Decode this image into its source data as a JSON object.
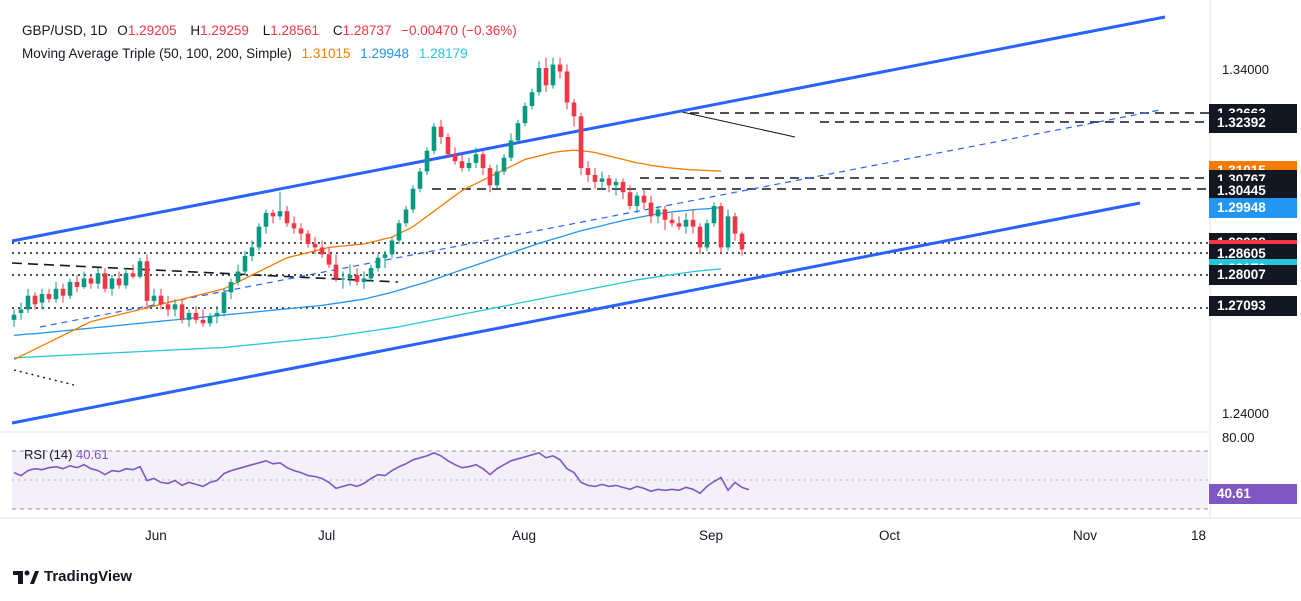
{
  "header": {
    "symbol": "GBP/USD, 1D",
    "open_label": "O",
    "open": "1.29205",
    "high_label": "H",
    "high": "1.29259",
    "low_label": "L",
    "low": "1.28561",
    "close_label": "C",
    "close": "1.28737",
    "change": "−0.00470 (−0.36%)",
    "indicator": "Moving Average Triple (50, 100, 200, Simple)",
    "ma50": "1.31015",
    "ma100": "1.29948",
    "ma200": "1.28179"
  },
  "colors": {
    "up": "#089981",
    "down": "#f23645",
    "ma50": "#f57c00",
    "ma100": "#2196f3",
    "ma200": "#26c6da",
    "channel": "#2962ff",
    "rsi": "#7e57c2",
    "dark_tag": "#131722"
  },
  "price_axis": {
    "labels": [
      {
        "text": "1.34000",
        "value": 1.34
      },
      {
        "text": "1.24000",
        "value": 1.24
      }
    ],
    "tags": [
      {
        "text": "1.32663",
        "value": 1.32663,
        "bg": "#131722"
      },
      {
        "text": "1.32392",
        "value": 1.32392,
        "bg": "#131722"
      },
      {
        "text": "1.31015",
        "value": 1.31015,
        "bg": "#f57c00"
      },
      {
        "text": "1.30767",
        "value": 1.30767,
        "bg": "#131722"
      },
      {
        "text": "1.30445",
        "value": 1.30445,
        "bg": "#131722"
      },
      {
        "text": "1.29948",
        "value": 1.29948,
        "bg": "#2196f3"
      },
      {
        "text": "1.28938",
        "value": 1.28938,
        "bg": "#131722"
      },
      {
        "text": "1.28737",
        "value": 1.28737,
        "bg": "#f23645"
      },
      {
        "text": "1.28605",
        "value": 1.28605,
        "bg": "#131722"
      },
      {
        "text": "1.28179",
        "value": 1.28179,
        "bg": "#26c6da"
      },
      {
        "text": "1.28007",
        "value": 1.28007,
        "bg": "#131722"
      },
      {
        "text": "1.27093",
        "value": 1.27093,
        "bg": "#131722"
      }
    ]
  },
  "rsi_axis": {
    "label": "RSI (14)",
    "value": "40.61",
    "top_label": "80.00"
  },
  "months": [
    "Jun",
    "Jul",
    "Aug",
    "Sep",
    "Oct",
    "Nov",
    "18"
  ],
  "brand": "TradingView",
  "chart_data": {
    "type": "candlestick",
    "title": "GBP/USD, 1D",
    "x_start": "2024-05-15",
    "candles": [
      [
        1.267,
        1.27,
        1.265,
        1.2685
      ],
      [
        1.269,
        1.272,
        1.267,
        1.27
      ],
      [
        1.27,
        1.276,
        1.269,
        1.274
      ],
      [
        1.274,
        1.275,
        1.27,
        1.2715
      ],
      [
        1.272,
        1.276,
        1.27,
        1.2745
      ],
      [
        1.2745,
        1.276,
        1.272,
        1.273
      ],
      [
        1.273,
        1.278,
        1.272,
        1.276
      ],
      [
        1.276,
        1.2775,
        1.272,
        1.274
      ],
      [
        1.274,
        1.279,
        1.273,
        1.278
      ],
      [
        1.278,
        1.28,
        1.275,
        1.2765
      ],
      [
        1.2765,
        1.281,
        1.276,
        1.279
      ],
      [
        1.279,
        1.28,
        1.276,
        1.2775
      ],
      [
        1.2775,
        1.282,
        1.276,
        1.2805
      ],
      [
        1.2805,
        1.282,
        1.275,
        1.276
      ],
      [
        1.276,
        1.28,
        1.274,
        1.279
      ],
      [
        1.279,
        1.281,
        1.276,
        1.277
      ],
      [
        1.277,
        1.282,
        1.276,
        1.2805
      ],
      [
        1.2805,
        1.283,
        1.279,
        1.2795
      ],
      [
        1.2795,
        1.285,
        1.279,
        1.284
      ],
      [
        1.284,
        1.286,
        1.27,
        1.2725
      ],
      [
        1.2725,
        1.276,
        1.271,
        1.274
      ],
      [
        1.274,
        1.276,
        1.27,
        1.2715
      ],
      [
        1.2715,
        1.274,
        1.268,
        1.27
      ],
      [
        1.27,
        1.273,
        1.268,
        1.2715
      ],
      [
        1.2715,
        1.273,
        1.266,
        1.267
      ],
      [
        1.267,
        1.27,
        1.265,
        1.269
      ],
      [
        1.269,
        1.271,
        1.266,
        1.267
      ],
      [
        1.267,
        1.27,
        1.265,
        1.266
      ],
      [
        1.266,
        1.269,
        1.265,
        1.268
      ],
      [
        1.268,
        1.271,
        1.266,
        1.269
      ],
      [
        1.269,
        1.276,
        1.268,
        1.275
      ],
      [
        1.275,
        1.279,
        1.273,
        1.278
      ],
      [
        1.278,
        1.283,
        1.277,
        1.281
      ],
      [
        1.281,
        1.287,
        1.28,
        1.2855
      ],
      [
        1.2855,
        1.29,
        1.284,
        1.288
      ],
      [
        1.288,
        1.295,
        1.287,
        1.294
      ],
      [
        1.294,
        1.299,
        1.292,
        1.298
      ],
      [
        1.298,
        1.299,
        1.295,
        1.297
      ],
      [
        1.297,
        1.304,
        1.296,
        1.2985
      ],
      [
        1.2985,
        1.3,
        1.294,
        1.295
      ],
      [
        1.295,
        1.297,
        1.292,
        1.2935
      ],
      [
        1.2935,
        1.295,
        1.29,
        1.292
      ],
      [
        1.292,
        1.293,
        1.288,
        1.289
      ],
      [
        1.289,
        1.291,
        1.286,
        1.288
      ],
      [
        1.288,
        1.29,
        1.285,
        1.286
      ],
      [
        1.286,
        1.288,
        1.282,
        1.283
      ],
      [
        1.283,
        1.286,
        1.278,
        1.279
      ],
      [
        1.279,
        1.281,
        1.276,
        1.279
      ],
      [
        1.279,
        1.283,
        1.277,
        1.28
      ],
      [
        1.28,
        1.282,
        1.277,
        1.278
      ],
      [
        1.278,
        1.281,
        1.276,
        1.279
      ],
      [
        1.279,
        1.283,
        1.278,
        1.282
      ],
      [
        1.282,
        1.286,
        1.281,
        1.285
      ],
      [
        1.285,
        1.287,
        1.282,
        1.286
      ],
      [
        1.286,
        1.291,
        1.285,
        1.29
      ],
      [
        1.29,
        1.296,
        1.289,
        1.295
      ],
      [
        1.295,
        1.3,
        1.294,
        1.299
      ],
      [
        1.299,
        1.306,
        1.298,
        1.305
      ],
      [
        1.305,
        1.311,
        1.304,
        1.31
      ],
      [
        1.31,
        1.317,
        1.309,
        1.316
      ],
      [
        1.316,
        1.324,
        1.315,
        1.323
      ],
      [
        1.323,
        1.325,
        1.318,
        1.32
      ],
      [
        1.32,
        1.321,
        1.314,
        1.315
      ],
      [
        1.315,
        1.317,
        1.312,
        1.313
      ],
      [
        1.313,
        1.315,
        1.31,
        1.311
      ],
      [
        1.311,
        1.314,
        1.31,
        1.3125
      ],
      [
        1.3125,
        1.317,
        1.311,
        1.315
      ],
      [
        1.315,
        1.316,
        1.309,
        1.311
      ],
      [
        1.311,
        1.312,
        1.304,
        1.306
      ],
      [
        1.306,
        1.312,
        1.305,
        1.31
      ],
      [
        1.31,
        1.315,
        1.309,
        1.314
      ],
      [
        1.314,
        1.321,
        1.313,
        1.319
      ],
      [
        1.319,
        1.325,
        1.318,
        1.324
      ],
      [
        1.324,
        1.33,
        1.323,
        1.329
      ],
      [
        1.329,
        1.334,
        1.328,
        1.333
      ],
      [
        1.333,
        1.342,
        1.332,
        1.34
      ],
      [
        1.34,
        1.343,
        1.333,
        1.335
      ],
      [
        1.335,
        1.343,
        1.334,
        1.341
      ],
      [
        1.341,
        1.343,
        1.337,
        1.339
      ],
      [
        1.339,
        1.341,
        1.328,
        1.33
      ],
      [
        1.33,
        1.331,
        1.323,
        1.326
      ],
      [
        1.326,
        1.327,
        1.309,
        1.311
      ],
      [
        1.311,
        1.313,
        1.307,
        1.309
      ],
      [
        1.309,
        1.311,
        1.305,
        1.307
      ],
      [
        1.307,
        1.31,
        1.305,
        1.308
      ],
      [
        1.308,
        1.309,
        1.304,
        1.306
      ],
      [
        1.306,
        1.308,
        1.303,
        1.307
      ],
      [
        1.307,
        1.308,
        1.302,
        1.304
      ],
      [
        1.304,
        1.306,
        1.299,
        1.3
      ],
      [
        1.3,
        1.304,
        1.298,
        1.303
      ],
      [
        1.303,
        1.305,
        1.299,
        1.301
      ],
      [
        1.301,
        1.303,
        1.295,
        1.297
      ],
      [
        1.297,
        1.3,
        1.295,
        1.299
      ],
      [
        1.299,
        1.3,
        1.293,
        1.296
      ],
      [
        1.296,
        1.298,
        1.294,
        1.295
      ],
      [
        1.295,
        1.297,
        1.293,
        1.294
      ],
      [
        1.294,
        1.298,
        1.292,
        1.296
      ],
      [
        1.296,
        1.299,
        1.292,
        1.294
      ],
      [
        1.294,
        1.295,
        1.286,
        1.288
      ],
      [
        1.288,
        1.296,
        1.287,
        1.295
      ],
      [
        1.295,
        1.301,
        1.294,
        1.3
      ],
      [
        1.3,
        1.301,
        1.286,
        1.288
      ],
      [
        1.288,
        1.299,
        1.287,
        1.297
      ],
      [
        1.297,
        1.298,
        1.29,
        1.292
      ],
      [
        1.292,
        1.2926,
        1.2856,
        1.2874
      ]
    ],
    "ma50": [
      1.2555,
      1.2565,
      1.2575,
      1.2585,
      1.2595,
      1.2605,
      1.2615,
      1.2625,
      1.2635,
      1.2645,
      1.2655,
      1.2665,
      1.267,
      1.2675,
      1.268,
      1.2685,
      1.269,
      1.2695,
      1.27,
      1.2705,
      1.271,
      1.2715,
      1.272,
      1.2725,
      1.273,
      1.2735,
      1.274,
      1.2745,
      1.275,
      1.2755,
      1.276,
      1.277,
      1.278,
      1.279,
      1.28,
      1.281,
      1.282,
      1.283,
      1.284,
      1.285,
      1.2855,
      1.286,
      1.2865,
      1.287,
      1.2875,
      1.288,
      1.2882,
      1.2884,
      1.2886,
      1.2888,
      1.289,
      1.2895,
      1.29,
      1.2905,
      1.291,
      1.292,
      1.293,
      1.294,
      1.2955,
      1.297,
      1.2985,
      1.3,
      1.3015,
      1.303,
      1.3045,
      1.3055,
      1.3065,
      1.3075,
      1.3085,
      1.3095,
      1.3105,
      1.3115,
      1.3125,
      1.3135,
      1.314,
      1.3145,
      1.315,
      1.3155,
      1.3158,
      1.316,
      1.3162,
      1.316,
      1.3158,
      1.3155,
      1.315,
      1.3145,
      1.314,
      1.3135,
      1.313,
      1.3125,
      1.3122,
      1.3118,
      1.3115,
      1.3112,
      1.311,
      1.3108,
      1.3106,
      1.3105,
      1.3104,
      1.3103,
      1.3102,
      1.3101
    ],
    "ma100": [
      1.2625,
      1.2627,
      1.2629,
      1.263,
      1.2632,
      1.2634,
      1.2636,
      1.2638,
      1.264,
      1.2642,
      1.2644,
      1.2646,
      1.2648,
      1.265,
      1.2652,
      1.2654,
      1.2656,
      1.2658,
      1.266,
      1.2662,
      1.2664,
      1.2666,
      1.2668,
      1.267,
      1.2672,
      1.2674,
      1.2676,
      1.2678,
      1.268,
      1.2682,
      1.2684,
      1.2686,
      1.2688,
      1.269,
      1.2692,
      1.2694,
      1.2696,
      1.2698,
      1.27,
      1.2702,
      1.2704,
      1.2706,
      1.2708,
      1.271,
      1.2712,
      1.2715,
      1.2718,
      1.2721,
      1.2724,
      1.2727,
      1.273,
      1.2735,
      1.274,
      1.2745,
      1.275,
      1.2756,
      1.2762,
      1.2768,
      1.2774,
      1.278,
      1.2787,
      1.2794,
      1.2801,
      1.2808,
      1.2815,
      1.2822,
      1.2829,
      1.2836,
      1.2843,
      1.285,
      1.2857,
      1.2864,
      1.2871,
      1.2878,
      1.2885,
      1.2892,
      1.2898,
      1.2904,
      1.291,
      1.2916,
      1.2922,
      1.2928,
      1.2933,
      1.2938,
      1.2943,
      1.2948,
      1.2953,
      1.2958,
      1.2962,
      1.2966,
      1.297,
      1.2974,
      1.2977,
      1.298,
      1.2983,
      1.2985,
      1.2987,
      1.2989,
      1.2991,
      1.2992,
      1.2994,
      1.2995
    ],
    "ma200": [
      1.256,
      1.2561,
      1.2562,
      1.2563,
      1.2564,
      1.2565,
      1.2566,
      1.2567,
      1.2568,
      1.2569,
      1.257,
      1.2571,
      1.2572,
      1.2573,
      1.2574,
      1.2575,
      1.2576,
      1.2577,
      1.2578,
      1.2579,
      1.258,
      1.2581,
      1.2582,
      1.2583,
      1.2584,
      1.2585,
      1.2586,
      1.2587,
      1.2588,
      1.2589,
      1.259,
      1.2592,
      1.2594,
      1.2596,
      1.2598,
      1.26,
      1.2602,
      1.2604,
      1.2606,
      1.2608,
      1.261,
      1.2612,
      1.2614,
      1.2616,
      1.2618,
      1.262,
      1.2623,
      1.2626,
      1.2629,
      1.2632,
      1.2635,
      1.2638,
      1.2641,
      1.2644,
      1.2647,
      1.265,
      1.2654,
      1.2658,
      1.2662,
      1.2666,
      1.267,
      1.2674,
      1.2678,
      1.2682,
      1.2686,
      1.269,
      1.2694,
      1.2698,
      1.2702,
      1.2706,
      1.271,
      1.2714,
      1.2718,
      1.2722,
      1.2726,
      1.273,
      1.2734,
      1.2738,
      1.2742,
      1.2746,
      1.275,
      1.2754,
      1.2758,
      1.2762,
      1.2766,
      1.277,
      1.2774,
      1.2778,
      1.2782,
      1.2786,
      1.2789,
      1.2792,
      1.2795,
      1.2798,
      1.2801,
      1.2804,
      1.2807,
      1.281,
      1.2812,
      1.2814,
      1.2816,
      1.2818
    ],
    "rsi": [
      58,
      55,
      60,
      62,
      61,
      63,
      64,
      62,
      65,
      63,
      66,
      62,
      60,
      56,
      60,
      59,
      62,
      61,
      64,
      50,
      52,
      48,
      47,
      50,
      45,
      48,
      46,
      44,
      48,
      50,
      57,
      60,
      62,
      64,
      66,
      68,
      70,
      67,
      68,
      63,
      60,
      58,
      55,
      54,
      52,
      48,
      42,
      44,
      46,
      44,
      47,
      52,
      56,
      55,
      60,
      64,
      67,
      71,
      73,
      75,
      78,
      75,
      70,
      66,
      63,
      64,
      66,
      62,
      56,
      62,
      66,
      70,
      72,
      74,
      76,
      78,
      73,
      75,
      71,
      62,
      58,
      48,
      45,
      44,
      46,
      44,
      45,
      43,
      41,
      44,
      42,
      39,
      41,
      40,
      41,
      40,
      43,
      41,
      37,
      44,
      49,
      53,
      40,
      48,
      43,
      40.6
    ],
    "rsi_range": [
      20,
      80
    ]
  }
}
